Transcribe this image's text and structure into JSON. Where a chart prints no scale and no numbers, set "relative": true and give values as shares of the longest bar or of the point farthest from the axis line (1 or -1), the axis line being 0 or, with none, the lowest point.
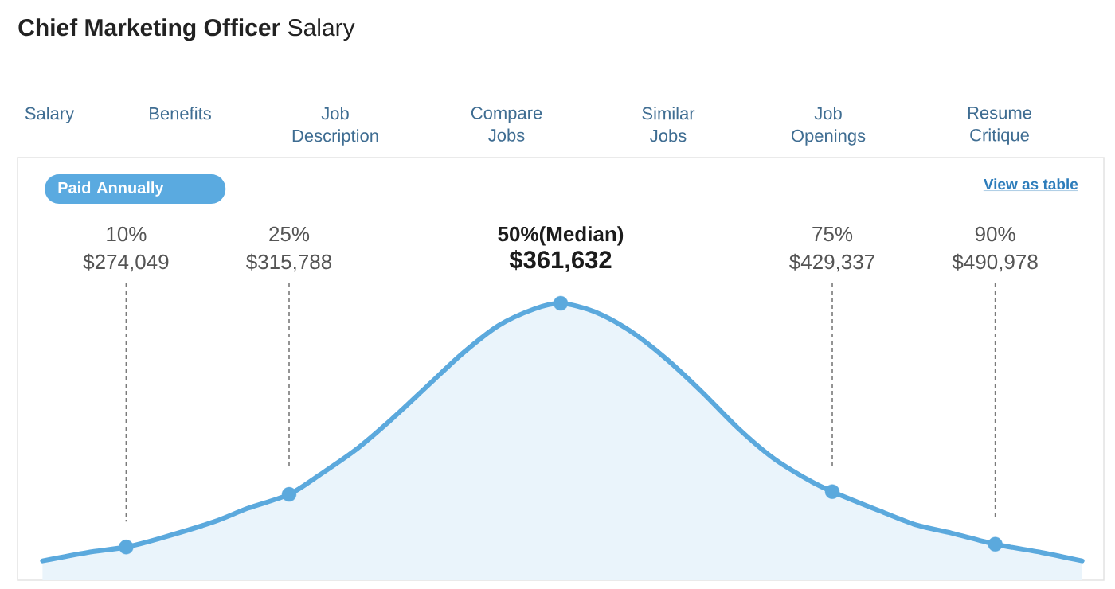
{
  "chart_data": {
    "type": "area",
    "title": "**Chief Marketing Officer** Salary",
    "relative": true,
    "tick_labels": "x",
    "grid": "x",
    "xlim": [
      0,
      100
    ],
    "xticks": [
      {
        "value": 10,
        "label": "10%"
      },
      {
        "value": 25,
        "label": "25%"
      },
      {
        "value": 50,
        "label": "50%(Median)"
      },
      {
        "value": 75,
        "label": "75%"
      },
      {
        "value": 90,
        "label": "90%"
      }
    ],
    "series": [
      {
        "color": "#5ba9dd",
        "x": [
          2.3,
          6.4,
          10,
          13.0,
          18.0,
          21.2,
          25,
          27.8,
          31.1,
          34.4,
          37.7,
          41.0,
          44.3,
          47.6,
          50,
          53.1,
          56.4,
          59.7,
          63.0,
          66.3,
          69.6,
          72.9,
          75,
          79.4,
          82.7,
          86.0,
          90,
          94.3,
          98.0
        ],
        "values": [
          0.07,
          0.1,
          0.12,
          0.15,
          0.21,
          0.26,
          0.31,
          0.38,
          0.47,
          0.58,
          0.7,
          0.82,
          0.92,
          0.98,
          1,
          0.97,
          0.9,
          0.8,
          0.68,
          0.55,
          0.44,
          0.36,
          0.32,
          0.25,
          0.2,
          0.17,
          0.13,
          0.1,
          0.07
        ]
      },
      {
        "type": "scatter",
        "color": "#5ba9dd",
        "marker": "circle",
        "x": [
          10,
          25,
          50,
          75,
          90
        ],
        "values": [
          0.12,
          0.31,
          1,
          0.32,
          0.13
        ]
      }
    ],
    "annotations": [
      "Salary",
      "Benefits",
      "Job Description",
      "Compare Jobs",
      "Similar Jobs",
      "Job Openings",
      "Resume Critique",
      "Paid Annually",
      "View as table",
      "$274,049",
      "$315,788",
      "$361,632",
      "$429,337",
      "$490,978"
    ]
  }
}
